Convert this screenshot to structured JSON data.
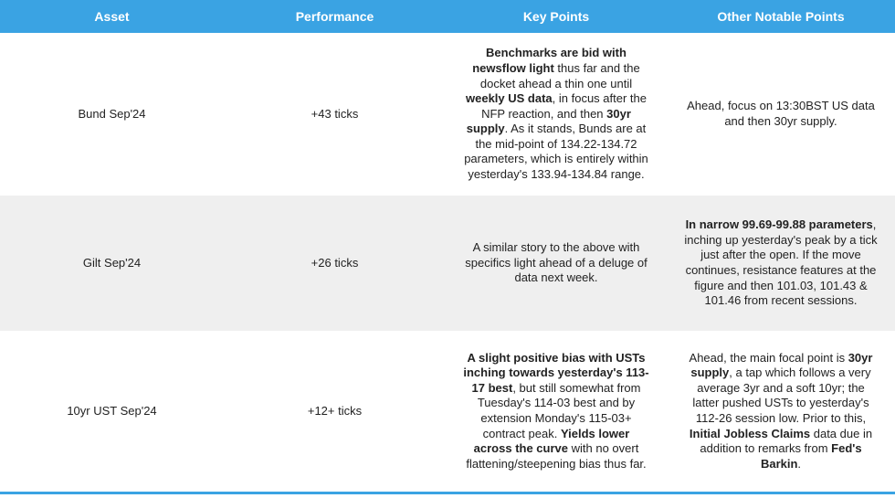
{
  "table": {
    "headers": [
      "Asset",
      "Performance",
      "Key Points",
      "Other Notable Points"
    ],
    "rows": [
      [
        [
          "Bund Sep'24"
        ],
        [
          "+43 ticks"
        ],
        [
          {
            "bold": "Benchmarks are bid with newsflow light"
          },
          " thus far and the docket ahead a thin one until ",
          {
            "bold": "weekly US data"
          },
          ", in focus after the NFP reaction, and then ",
          {
            "bold": "30yr supply"
          },
          ". As it stands, Bunds are at the mid-point of 134.22-134.72 parameters, which is entirely within yesterday's 133.94-134.84 range."
        ],
        [
          "Ahead, focus on 13:30BST US data and then 30yr supply."
        ]
      ],
      [
        [
          "Gilt Sep'24"
        ],
        [
          "+26 ticks"
        ],
        [
          "A similar story to the above with specifics light ahead of a deluge of data next week."
        ],
        [
          {
            "bold": "In narrow 99.69-99.88 parameters"
          },
          ", inching up yesterday's peak by a tick just after the open. If the move continues, resistance features at the figure and then 101.03, 101.43 & 101.46 from recent sessions."
        ]
      ],
      [
        [
          "10yr UST Sep'24"
        ],
        [
          "+12+ ticks"
        ],
        [
          {
            "bold": "A slight positive bias with USTs inching towards yesterday's 113-17 best"
          },
          ", but still somewhat from Tuesday's 114-03 best and by extension Monday's 115-03+ contract peak. ",
          {
            "bold": "Yields lower across the curve"
          },
          " with no overt flattening/steepening bias thus far."
        ],
        [
          "Ahead, the main focal point is ",
          {
            "bold": "30yr supply"
          },
          ", a tap which follows a very average 3yr and a soft 10yr; the latter pushed USTs to yesterday's 112-26 session low. Prior to this, ",
          {
            "bold": "Initial Jobless Claims"
          },
          " data due in addition to remarks from ",
          {
            "bold": "Fed's Barkin"
          },
          "."
        ]
      ]
    ]
  }
}
